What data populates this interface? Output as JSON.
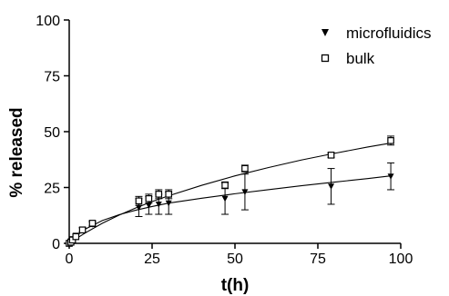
{
  "chart_data": {
    "type": "scatter",
    "title": "",
    "xlabel": "t(h)",
    "ylabel": "% released",
    "xlim": [
      0,
      100
    ],
    "ylim": [
      0,
      100
    ],
    "xticks": [
      0,
      25,
      50,
      75,
      100
    ],
    "yticks": [
      0,
      25,
      50,
      75,
      100
    ],
    "grid": false,
    "legend_position": "top-right",
    "series": [
      {
        "name": "microfluidics",
        "marker": "triangle-down-filled",
        "color": "#000000",
        "points": [
          {
            "x": 0,
            "y": 0,
            "err": 0.5
          },
          {
            "x": 0.5,
            "y": 1,
            "err": 0.5
          },
          {
            "x": 1,
            "y": 2,
            "err": 0.5
          },
          {
            "x": 2,
            "y": 3.5,
            "err": 0.5
          },
          {
            "x": 4,
            "y": 6,
            "err": 1
          },
          {
            "x": 7,
            "y": 8.5,
            "err": 1
          },
          {
            "x": 21,
            "y": 16,
            "err": 4
          },
          {
            "x": 24,
            "y": 17,
            "err": 4
          },
          {
            "x": 27,
            "y": 17.5,
            "err": 4.5
          },
          {
            "x": 30,
            "y": 18,
            "err": 5
          },
          {
            "x": 47,
            "y": 20,
            "err": 7
          },
          {
            "x": 53,
            "y": 23,
            "err": 8
          },
          {
            "x": 79,
            "y": 25.5,
            "err": 8
          },
          {
            "x": 97,
            "y": 30,
            "err": 6
          }
        ],
        "fit": [
          [
            0,
            0
          ],
          [
            2,
            3.2
          ],
          [
            5,
            6.5
          ],
          [
            10,
            10.2
          ],
          [
            15,
            12.8
          ],
          [
            20,
            14.8
          ],
          [
            25,
            16.5
          ],
          [
            30,
            18
          ],
          [
            40,
            20.2
          ],
          [
            50,
            22.2
          ],
          [
            60,
            24
          ],
          [
            70,
            25.8
          ],
          [
            80,
            27.4
          ],
          [
            90,
            29
          ],
          [
            97,
            30.2
          ]
        ]
      },
      {
        "name": "bulk",
        "marker": "square-open",
        "color": "#000000",
        "points": [
          {
            "x": 0,
            "y": 0,
            "err": 0.5
          },
          {
            "x": 0.5,
            "y": 0.5,
            "err": 0.5
          },
          {
            "x": 1,
            "y": 1.5,
            "err": 0.5
          },
          {
            "x": 2,
            "y": 3,
            "err": 0.5
          },
          {
            "x": 4,
            "y": 6,
            "err": 1
          },
          {
            "x": 7,
            "y": 9,
            "err": 1
          },
          {
            "x": 21,
            "y": 19,
            "err": 2
          },
          {
            "x": 24,
            "y": 20,
            "err": 2
          },
          {
            "x": 27,
            "y": 22,
            "err": 2
          },
          {
            "x": 30,
            "y": 22,
            "err": 2
          },
          {
            "x": 47,
            "y": 26,
            "err": 1.5
          },
          {
            "x": 53,
            "y": 33.5,
            "err": 1.5
          },
          {
            "x": 79,
            "y": 39.5,
            "err": 1
          },
          {
            "x": 97,
            "y": 46,
            "err": 2
          }
        ],
        "fit": [
          [
            0,
            0
          ],
          [
            2,
            2
          ],
          [
            5,
            4.8
          ],
          [
            10,
            9
          ],
          [
            15,
            12.6
          ],
          [
            20,
            15.8
          ],
          [
            25,
            18.7
          ],
          [
            30,
            21.3
          ],
          [
            40,
            26
          ],
          [
            50,
            30.2
          ],
          [
            60,
            33.9
          ],
          [
            70,
            37.3
          ],
          [
            80,
            40.3
          ],
          [
            90,
            43.1
          ],
          [
            97,
            44.9
          ]
        ]
      }
    ]
  }
}
